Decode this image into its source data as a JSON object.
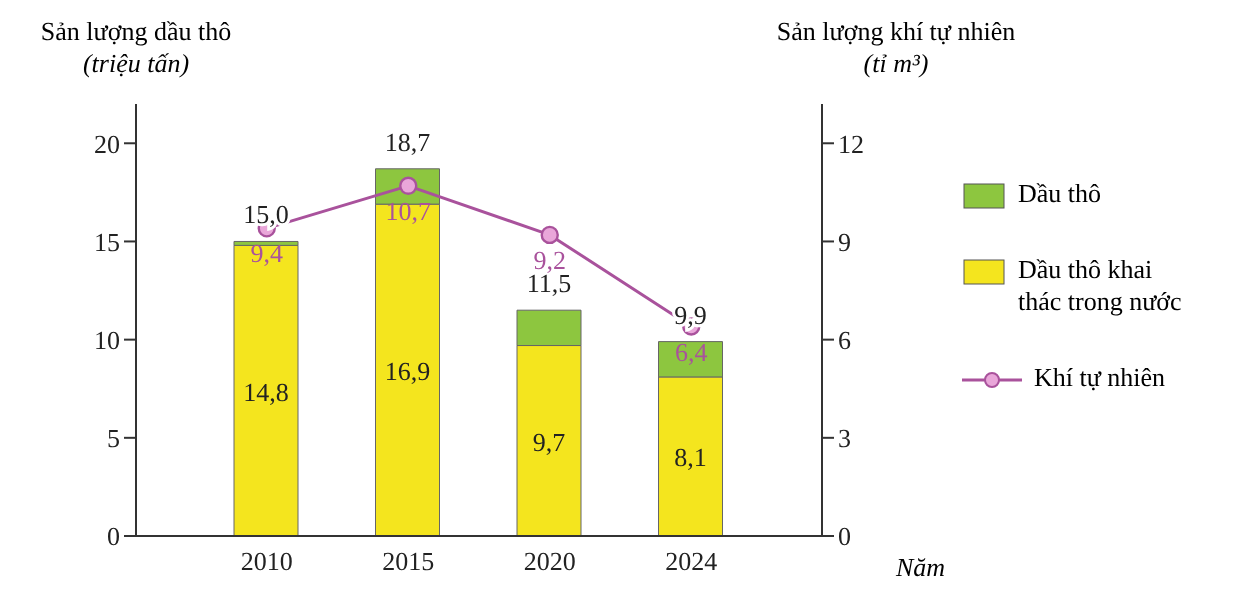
{
  "chart_data": {
    "type": "bar",
    "stacked": true,
    "categories": [
      "2010",
      "2015",
      "2020",
      "2024"
    ],
    "ylabel": "Sản lượng dầu thô\n(triệu tấn)",
    "y2label": "Sản lượng khí tự nhiên\n(tỉ m³)",
    "xlabel": "Năm",
    "series": [
      {
        "name": "Dầu thô khai thác trong nước",
        "color": "#f4e51e",
        "values": [
          14.8,
          16.9,
          9.7,
          8.1
        ],
        "value_labels": [
          "14,8",
          "16,9",
          "9,7",
          "8,1"
        ]
      },
      {
        "name": "Dầu thô",
        "color": "#8dc63f",
        "values": [
          0.2,
          1.8,
          1.8,
          1.8
        ]
      },
      {
        "name": "Khí tự nhiên",
        "type": "line",
        "axis": "y2",
        "color": "#a9529c",
        "marker": "circle",
        "values": [
          9.4,
          10.7,
          9.2,
          6.4
        ],
        "value_labels": [
          "9,4",
          "10,7",
          "9,2",
          "6,4"
        ]
      }
    ],
    "totals": [
      "15,0",
      "18,7",
      "11,5",
      "9,9"
    ],
    "ylim": [
      0,
      22
    ],
    "yticks": [
      0,
      5,
      10,
      15,
      20
    ],
    "y2lim": [
      0,
      13.2
    ],
    "y2ticks": [
      0,
      3,
      6,
      9,
      12
    ],
    "grid": false,
    "legend": "right"
  }
}
